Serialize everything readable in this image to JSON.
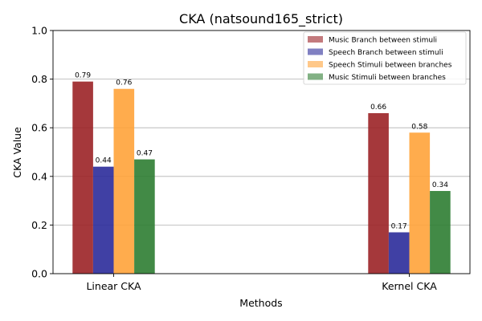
{
  "chart_data": {
    "type": "bar",
    "title": "CKA (natsound165_strict)",
    "xlabel": "Methods",
    "ylabel": "CKA Value",
    "ylim": [
      0,
      1.0
    ],
    "yticks": [
      0.0,
      0.2,
      0.4,
      0.6,
      0.8,
      1.0
    ],
    "ytick_labels": [
      "0.0",
      "0.2",
      "0.4",
      "0.6",
      "0.8",
      "1.0"
    ],
    "grid": "y",
    "legend_position": "top-right",
    "categories": [
      "Linear CKA",
      "Kernel CKA"
    ],
    "series": [
      {
        "name": "Music Branch between stimuli",
        "color": "#9b2226",
        "values": [
          0.79,
          0.66
        ],
        "labels": [
          "0.79",
          "0.66"
        ]
      },
      {
        "name": "Speech Branch between stimuli",
        "color": "#2b2b9a",
        "values": [
          0.44,
          0.17
        ],
        "labels": [
          "0.44",
          "0.17"
        ]
      },
      {
        "name": "Speech Stimuli between branches",
        "color": "#ffa33a",
        "values": [
          0.76,
          0.58
        ],
        "labels": [
          "0.76",
          "0.58"
        ]
      },
      {
        "name": "Music Stimuli between branches",
        "color": "#2e7d32",
        "values": [
          0.47,
          0.34
        ],
        "labels": [
          "0.47",
          "0.34"
        ]
      }
    ]
  }
}
